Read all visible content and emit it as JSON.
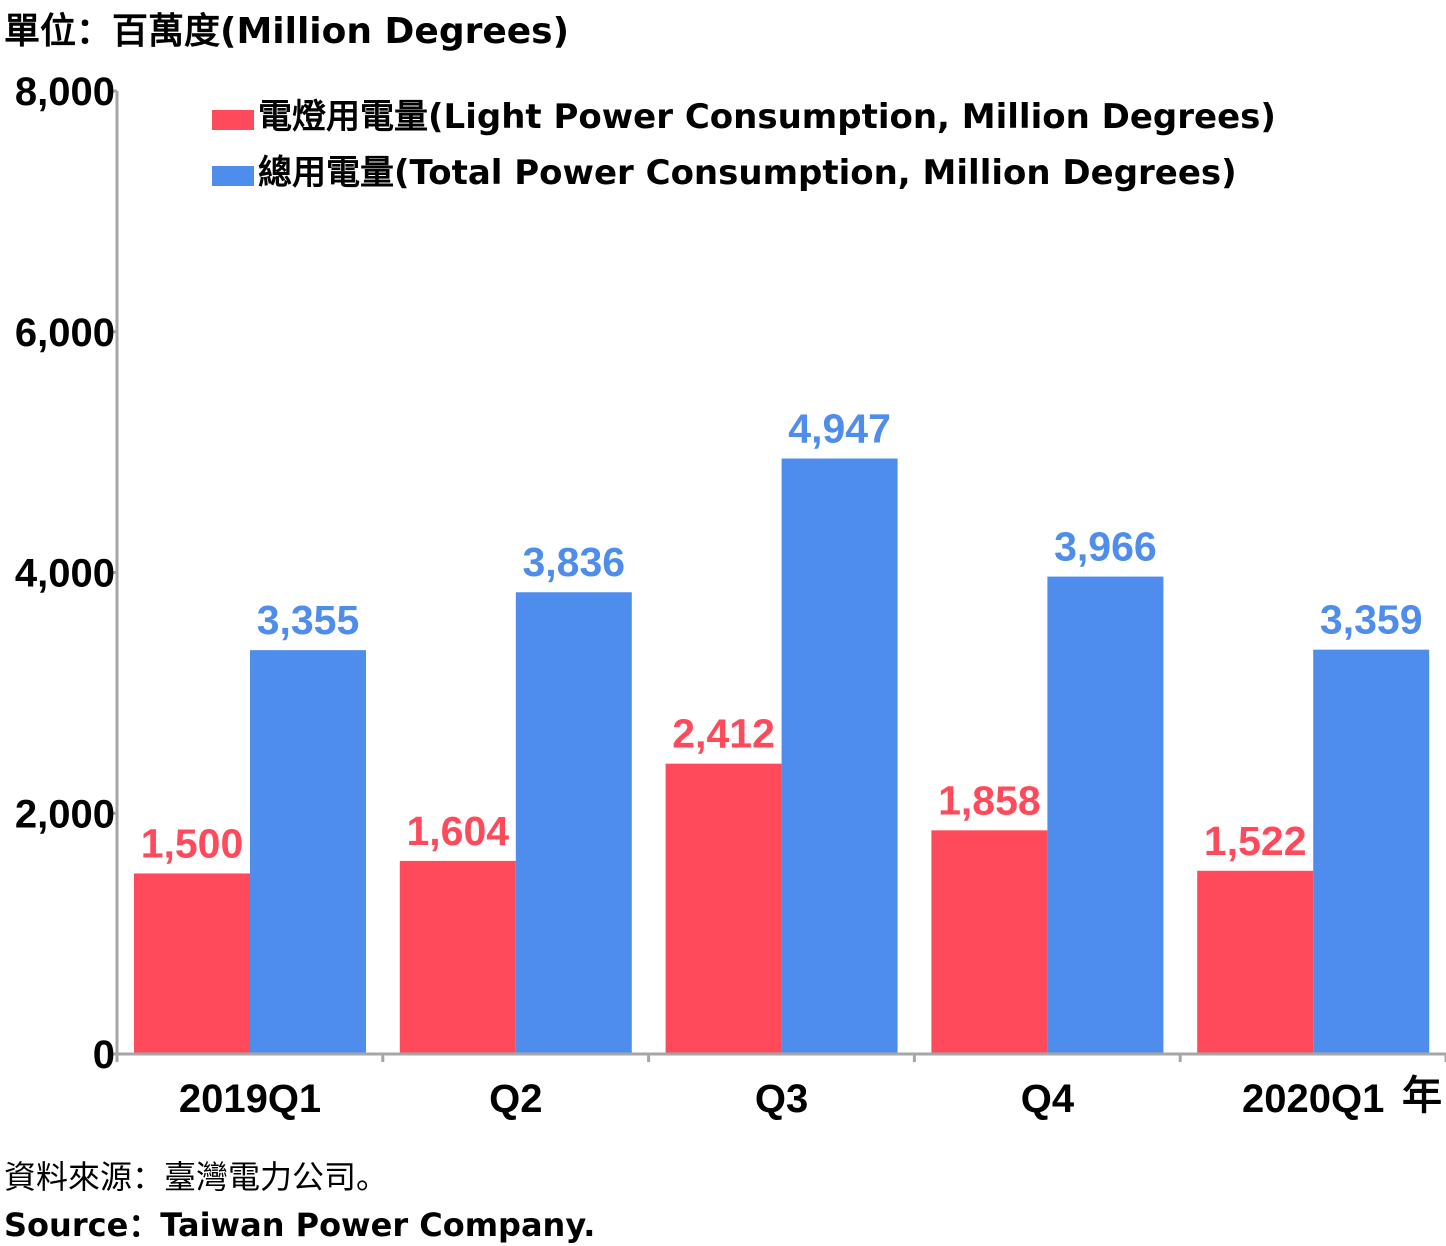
{
  "unit_label": "單位：百萬度(Million Degrees)",
  "source_zh": "資料來源：臺灣電力公司。",
  "source_en": "Source：Taiwan Power Company.",
  "chart_data": {
    "type": "bar",
    "categories": [
      "2019Q1",
      "Q2",
      "Q3",
      "Q4",
      "2020Q1"
    ],
    "x_suffix": "年",
    "ylim": [
      0,
      8000
    ],
    "yticks": [
      0,
      2000,
      4000,
      6000,
      8000
    ],
    "ytick_labels": [
      "0",
      "2,000",
      "4,000",
      "6,000",
      "8,000"
    ],
    "grid": false,
    "legend_position": "top",
    "series": [
      {
        "name": "電燈用電量(Light Power Consumption, Million Degrees)",
        "color": "#ff4a5c",
        "values": [
          1500,
          1604,
          2412,
          1858,
          1522
        ],
        "labels": [
          "1,500",
          "1,604",
          "2,412",
          "1,858",
          "1,522"
        ]
      },
      {
        "name": "總用電量(Total Power Consumption, Million Degrees)",
        "color": "#4f8dec",
        "values": [
          3355,
          3836,
          4947,
          3966,
          3359
        ],
        "labels": [
          "3,355",
          "3,836",
          "4,947",
          "3,966",
          "3,359"
        ]
      }
    ]
  }
}
